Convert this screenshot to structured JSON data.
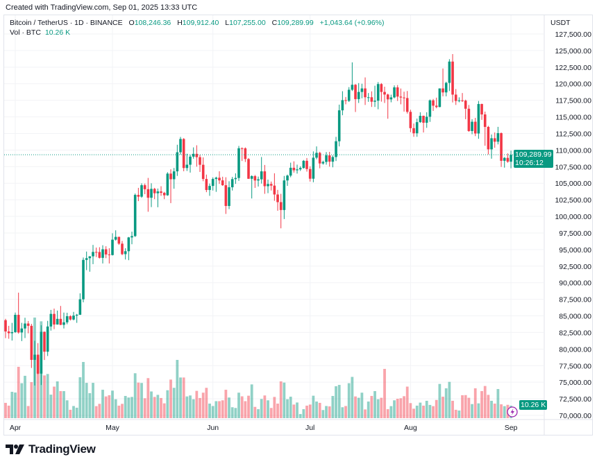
{
  "credit": "Created with TradingView.com, Sep 01, 2025 13:33 UTC",
  "legend": {
    "symbol": "Bitcoin / TetherUS · 1D · BINANCE",
    "o_label": "O",
    "o": "108,246.36",
    "h_label": "H",
    "h": "109,912.40",
    "l_label": "L",
    "l": "107,255.00",
    "c_label": "C",
    "c": "109,289.99",
    "change": "+1,043.64 (+0.96%)",
    "vol_label": "Vol · BTC",
    "vol": "10.26 K"
  },
  "price_axis": {
    "currency": "USDT",
    "last_price": "109,289.99",
    "countdown": "10:26:12",
    "last_volume": "10.26 K"
  },
  "colors": {
    "up": "#089981",
    "down": "#f23645",
    "events": "#9c27b0"
  },
  "brand": "TradingView",
  "chart_data": {
    "type": "candlestick",
    "symbol": "BTCUSDT",
    "interval": "1D",
    "ylim": [
      70000,
      127500
    ],
    "y_ticks": [
      "70,000.00",
      "72,500.00",
      "75,000.00",
      "77,500.00",
      "80,000.00",
      "82,500.00",
      "85,000.00",
      "87,500.00",
      "90,000.00",
      "92,500.00",
      "95,000.00",
      "97,500.00",
      "100,000.00",
      "102,500.00",
      "105,000.00",
      "107,500.00",
      "110,000.00",
      "112,500.00",
      "115,000.00",
      "117,500.00",
      "120,000.00",
      "122,500.00",
      "125,000.00",
      "127,500.00"
    ],
    "x_ticks": [
      {
        "label": "Apr",
        "date": "2025-04-01"
      },
      {
        "label": "May",
        "date": "2025-05-01"
      },
      {
        "label": "Jun",
        "date": "2025-06-01"
      },
      {
        "label": "Jul",
        "date": "2025-07-01"
      },
      {
        "label": "Aug",
        "date": "2025-08-01"
      },
      {
        "label": "Sep",
        "date": "2025-09-01"
      }
    ],
    "grid": true,
    "volume_unit": "K BTC",
    "columns": [
      "date",
      "open",
      "high",
      "low",
      "close",
      "volume"
    ],
    "candles": [
      [
        "2025-03-29",
        84350,
        84560,
        81650,
        82650,
        12.6
      ],
      [
        "2025-03-30",
        82650,
        83500,
        81550,
        82390,
        10.3
      ],
      [
        "2025-03-31",
        82390,
        83950,
        81280,
        82550,
        21.7
      ],
      [
        "2025-04-01",
        82550,
        85500,
        82430,
        85160,
        21.1
      ],
      [
        "2025-04-02",
        85160,
        88500,
        82320,
        82500,
        42.3
      ],
      [
        "2025-04-03",
        82500,
        83950,
        81200,
        83100,
        28.8
      ],
      [
        "2025-04-04",
        83100,
        84720,
        81660,
        83850,
        34.9
      ],
      [
        "2025-04-05",
        83850,
        84230,
        82370,
        83500,
        10
      ],
      [
        "2025-04-06",
        83500,
        83800,
        77150,
        78370,
        29.7
      ],
      [
        "2025-04-07",
        78370,
        81240,
        74500,
        79150,
        82.9
      ],
      [
        "2025-04-08",
        79150,
        80900,
        76200,
        76300,
        50
      ],
      [
        "2025-04-09",
        76300,
        83580,
        74580,
        82600,
        79.8
      ],
      [
        "2025-04-10",
        82600,
        82650,
        78350,
        79600,
        35.2
      ],
      [
        "2025-04-11",
        79600,
        84250,
        78950,
        83400,
        36.4
      ],
      [
        "2025-04-12",
        83400,
        85900,
        82780,
        85300,
        19.4
      ],
      [
        "2025-04-13",
        85300,
        86100,
        83000,
        83700,
        26
      ],
      [
        "2025-04-14",
        83700,
        85800,
        83680,
        84550,
        30.3
      ],
      [
        "2025-04-15",
        84550,
        86500,
        83600,
        83650,
        22.3
      ],
      [
        "2025-04-16",
        83650,
        85500,
        83100,
        84030,
        22.3
      ],
      [
        "2025-04-17",
        84030,
        85470,
        83740,
        84950,
        14.7
      ],
      [
        "2025-04-18",
        84950,
        85100,
        84300,
        84450,
        6.9
      ],
      [
        "2025-04-19",
        84450,
        85600,
        84320,
        85050,
        10
      ],
      [
        "2025-04-20",
        85050,
        85300,
        83950,
        85170,
        8.6
      ],
      [
        "2025-04-21",
        85170,
        88400,
        85140,
        87500,
        33.7
      ],
      [
        "2025-04-22",
        87500,
        93800,
        87050,
        93440,
        46.3
      ],
      [
        "2025-04-23",
        93440,
        94700,
        91900,
        93700,
        29.1
      ],
      [
        "2025-04-24",
        93700,
        94000,
        91660,
        93980,
        20.6
      ],
      [
        "2025-04-25",
        93980,
        95700,
        92800,
        94640,
        29.1
      ],
      [
        "2025-04-26",
        94640,
        95300,
        93870,
        94630,
        9.9
      ],
      [
        "2025-04-27",
        94630,
        95350,
        93650,
        93750,
        11.8
      ],
      [
        "2025-04-28",
        93750,
        95650,
        92900,
        95040,
        23.4
      ],
      [
        "2025-04-29",
        95040,
        95500,
        93700,
        94260,
        17.9
      ],
      [
        "2025-04-30",
        94260,
        95200,
        92900,
        94170,
        18.9
      ],
      [
        "2025-05-01",
        94170,
        97450,
        94100,
        96490,
        22.7
      ],
      [
        "2025-05-02",
        96490,
        97900,
        96350,
        96910,
        15.6
      ],
      [
        "2025-05-03",
        96910,
        96950,
        95700,
        95890,
        10.3
      ],
      [
        "2025-05-04",
        95890,
        96300,
        94150,
        94310,
        11.8
      ],
      [
        "2025-05-05",
        94310,
        95200,
        93500,
        94750,
        18.3
      ],
      [
        "2025-05-06",
        94750,
        96900,
        93400,
        96830,
        17
      ],
      [
        "2025-05-07",
        96830,
        97700,
        95800,
        97030,
        17.5
      ],
      [
        "2025-05-08",
        97030,
        103450,
        96900,
        103240,
        37
      ],
      [
        "2025-05-09",
        103240,
        104300,
        102300,
        102970,
        29.3
      ],
      [
        "2025-05-10",
        102970,
        104980,
        102800,
        104700,
        29
      ],
      [
        "2025-05-11",
        104700,
        104950,
        103350,
        104100,
        16.4
      ],
      [
        "2025-05-12",
        104100,
        105800,
        100700,
        102810,
        33
      ],
      [
        "2025-05-13",
        102810,
        104990,
        101400,
        104150,
        22
      ],
      [
        "2025-05-14",
        104150,
        104300,
        102600,
        103490,
        17.5
      ],
      [
        "2025-05-15",
        103490,
        104200,
        101380,
        103760,
        19.2
      ],
      [
        "2025-05-16",
        103760,
        104550,
        103100,
        103550,
        16.6
      ],
      [
        "2025-05-17",
        103550,
        103700,
        102600,
        103180,
        12.2
      ],
      [
        "2025-05-18",
        103180,
        106660,
        103100,
        106450,
        23
      ],
      [
        "2025-05-19",
        106450,
        107100,
        102000,
        105600,
        31.8
      ],
      [
        "2025-05-20",
        105600,
        107300,
        104170,
        106790,
        25
      ],
      [
        "2025-05-21",
        106790,
        110800,
        106100,
        109670,
        48
      ],
      [
        "2025-05-22",
        109670,
        111980,
        109300,
        111670,
        33.5
      ],
      [
        "2025-05-23",
        111670,
        111800,
        106800,
        107290,
        33.5
      ],
      [
        "2025-05-24",
        107290,
        109450,
        106850,
        107790,
        17.9
      ],
      [
        "2025-05-25",
        107790,
        109300,
        106600,
        109010,
        18.7
      ],
      [
        "2025-05-26",
        109010,
        110400,
        108700,
        109430,
        15.6
      ],
      [
        "2025-05-27",
        109430,
        110720,
        107500,
        108930,
        22.5
      ],
      [
        "2025-05-28",
        108930,
        109300,
        106700,
        107780,
        16.6
      ],
      [
        "2025-05-29",
        107780,
        108900,
        105300,
        105640,
        21
      ],
      [
        "2025-05-30",
        105640,
        106300,
        103650,
        103980,
        25
      ],
      [
        "2025-05-31",
        103980,
        104950,
        103100,
        104590,
        12
      ],
      [
        "2025-06-01",
        104590,
        105880,
        103900,
        105640,
        10
      ],
      [
        "2025-06-02",
        105640,
        105980,
        103700,
        105830,
        14
      ],
      [
        "2025-06-03",
        105830,
        106800,
        104900,
        105430,
        14
      ],
      [
        "2025-06-04",
        105430,
        105980,
        104600,
        104700,
        14.7
      ],
      [
        "2025-06-05",
        104700,
        105900,
        100370,
        101570,
        23.4
      ],
      [
        "2025-06-06",
        101570,
        105300,
        101100,
        104390,
        17
      ],
      [
        "2025-06-07",
        104390,
        105950,
        103900,
        105620,
        9
      ],
      [
        "2025-06-08",
        105620,
        106490,
        104900,
        105790,
        8.4
      ],
      [
        "2025-06-09",
        105790,
        110620,
        105350,
        110270,
        21
      ],
      [
        "2025-06-10",
        110270,
        110400,
        108350,
        110260,
        18
      ],
      [
        "2025-06-11",
        110260,
        110400,
        108200,
        108650,
        14
      ],
      [
        "2025-06-12",
        108650,
        108800,
        105650,
        105670,
        18.5
      ],
      [
        "2025-06-13",
        105670,
        106200,
        102700,
        106070,
        27.8
      ],
      [
        "2025-06-14",
        106070,
        106250,
        104300,
        105410,
        9.3
      ],
      [
        "2025-06-15",
        105410,
        106000,
        104500,
        105590,
        7.4
      ],
      [
        "2025-06-16",
        105590,
        108950,
        104950,
        106790,
        15.8
      ],
      [
        "2025-06-17",
        106790,
        107750,
        103400,
        104550,
        18.7
      ],
      [
        "2025-06-18",
        104550,
        105550,
        103500,
        104880,
        14.7
      ],
      [
        "2025-06-19",
        104880,
        105250,
        103900,
        104640,
        8.4
      ],
      [
        "2025-06-20",
        104640,
        106500,
        102350,
        103300,
        17.5
      ],
      [
        "2025-06-21",
        103300,
        104000,
        100850,
        102150,
        12
      ],
      [
        "2025-06-22",
        102150,
        103400,
        98200,
        100960,
        30.3
      ],
      [
        "2025-06-23",
        100960,
        106100,
        99600,
        105420,
        29.3
      ],
      [
        "2025-06-24",
        105420,
        106300,
        104600,
        106150,
        15.6
      ],
      [
        "2025-06-25",
        106150,
        108100,
        105900,
        107330,
        17.7
      ],
      [
        "2025-06-26",
        107330,
        108300,
        106600,
        106950,
        11.2
      ],
      [
        "2025-06-27",
        106950,
        107800,
        106450,
        107090,
        12.9
      ],
      [
        "2025-06-28",
        107090,
        107550,
        106850,
        107300,
        3.4
      ],
      [
        "2025-06-29",
        107300,
        108500,
        107200,
        108380,
        7.4
      ],
      [
        "2025-06-30",
        108380,
        108800,
        106750,
        107140,
        10.3
      ],
      [
        "2025-07-01",
        107140,
        107550,
        105250,
        105680,
        11.2
      ],
      [
        "2025-07-02",
        105680,
        109800,
        105150,
        108850,
        18.5
      ],
      [
        "2025-07-03",
        108850,
        110550,
        108600,
        109580,
        13.7
      ],
      [
        "2025-07-04",
        109580,
        109750,
        107250,
        107980,
        12.6
      ],
      [
        "2025-07-05",
        107980,
        108400,
        107800,
        108210,
        6.7
      ],
      [
        "2025-07-06",
        108210,
        109700,
        107800,
        109200,
        10
      ],
      [
        "2025-07-07",
        109200,
        109730,
        107500,
        108250,
        9.7
      ],
      [
        "2025-07-08",
        108250,
        109200,
        107400,
        108950,
        18.3
      ],
      [
        "2025-07-09",
        108950,
        111990,
        108350,
        111330,
        26.3
      ],
      [
        "2025-07-10",
        111330,
        116850,
        110550,
        115990,
        27.4
      ],
      [
        "2025-07-11",
        115990,
        118870,
        115250,
        117520,
        9
      ],
      [
        "2025-07-12",
        117520,
        118000,
        116900,
        117420,
        10
      ],
      [
        "2025-07-13",
        117420,
        119490,
        117250,
        119090,
        28.8
      ],
      [
        "2025-07-14",
        119090,
        123220,
        118900,
        119840,
        34
      ],
      [
        "2025-07-15",
        119840,
        119950,
        115740,
        117680,
        17.9
      ],
      [
        "2025-07-16",
        117680,
        120100,
        117100,
        118760,
        16.8
      ],
      [
        "2025-07-17",
        118760,
        120000,
        117800,
        119290,
        21
      ],
      [
        "2025-07-18",
        119290,
        120950,
        116800,
        117960,
        7.2
      ],
      [
        "2025-07-19",
        117960,
        118600,
        117270,
        117960,
        13.7
      ],
      [
        "2025-07-20",
        117960,
        118850,
        116500,
        117290,
        18.3
      ],
      [
        "2025-07-21",
        117290,
        119700,
        116500,
        117440,
        22.3
      ],
      [
        "2025-07-22",
        117440,
        120250,
        116150,
        119950,
        15.6
      ],
      [
        "2025-07-23",
        119950,
        120100,
        117300,
        118760,
        16.8
      ],
      [
        "2025-07-24",
        118760,
        119550,
        117100,
        118370,
        40.6
      ],
      [
        "2025-07-25",
        118370,
        118500,
        114720,
        117640,
        7.4
      ],
      [
        "2025-07-26",
        117640,
        118350,
        117200,
        117940,
        9.9
      ],
      [
        "2025-07-27",
        117940,
        119750,
        117800,
        119450,
        14.7
      ],
      [
        "2025-07-28",
        119450,
        119800,
        117400,
        118060,
        16
      ],
      [
        "2025-07-29",
        118060,
        119280,
        116900,
        117920,
        16.4
      ],
      [
        "2025-07-30",
        117920,
        118800,
        115800,
        117840,
        18.1
      ],
      [
        "2025-07-31",
        117840,
        118900,
        115500,
        115760,
        26
      ],
      [
        "2025-08-01",
        115760,
        116080,
        112700,
        113300,
        12.4
      ],
      [
        "2025-08-02",
        113300,
        114000,
        112000,
        112530,
        7.8
      ],
      [
        "2025-08-03",
        112530,
        114750,
        112000,
        114210,
        10.3
      ],
      [
        "2025-08-04",
        114210,
        115700,
        114100,
        115160,
        12.8
      ],
      [
        "2025-08-05",
        115160,
        115200,
        112650,
        114120,
        10.3
      ],
      [
        "2025-08-06",
        114120,
        115700,
        113350,
        115020,
        14.3
      ],
      [
        "2025-08-07",
        115020,
        117630,
        114250,
        117490,
        10.9
      ],
      [
        "2025-08-08",
        117490,
        117700,
        115900,
        116690,
        9.9
      ],
      [
        "2025-08-09",
        116690,
        117900,
        116300,
        116490,
        15
      ],
      [
        "2025-08-10",
        116490,
        119300,
        116450,
        119290,
        28.2
      ],
      [
        "2025-08-11",
        119290,
        122300,
        118100,
        118690,
        17.7
      ],
      [
        "2025-08-12",
        118690,
        120300,
        118100,
        120130,
        24.6
      ],
      [
        "2025-08-13",
        120130,
        123700,
        118900,
        123340,
        29.9
      ],
      [
        "2025-08-14",
        123340,
        124470,
        117180,
        118360,
        14.3
      ],
      [
        "2025-08-15",
        118360,
        119200,
        116800,
        117400,
        6.9
      ],
      [
        "2025-08-16",
        117400,
        117950,
        117200,
        117490,
        6.3
      ],
      [
        "2025-08-17",
        117490,
        118600,
        117250,
        117450,
        18.9
      ],
      [
        "2025-08-18",
        117450,
        117600,
        114650,
        116230,
        19
      ],
      [
        "2025-08-19",
        116230,
        116800,
        112750,
        112870,
        16.8
      ],
      [
        "2025-08-20",
        112870,
        114650,
        112380,
        114270,
        11.6
      ],
      [
        "2025-08-21",
        114270,
        114850,
        112100,
        112500,
        24.6
      ],
      [
        "2025-08-22",
        112500,
        117400,
        111700,
        116940,
        12.2
      ],
      [
        "2025-08-23",
        116940,
        117000,
        114550,
        115370,
        22.3
      ],
      [
        "2025-08-24",
        115370,
        115800,
        110650,
        113490,
        26.5
      ],
      [
        "2025-08-25",
        113490,
        113650,
        109330,
        110110,
        19.2
      ],
      [
        "2025-08-26",
        110110,
        112350,
        108700,
        111780,
        14.3
      ],
      [
        "2025-08-27",
        111780,
        112650,
        110350,
        111260,
        12
      ],
      [
        "2025-08-28",
        111260,
        113500,
        110850,
        112550,
        24
      ],
      [
        "2025-08-29",
        112550,
        112650,
        107460,
        108380,
        11.4
      ],
      [
        "2025-08-30",
        108380,
        108950,
        107350,
        108820,
        9.9
      ],
      [
        "2025-08-31",
        108820,
        109500,
        108080,
        108250,
        11
      ],
      [
        "2025-09-01",
        108246.36,
        109912.4,
        107255.0,
        109289.99,
        10.26
      ]
    ]
  }
}
